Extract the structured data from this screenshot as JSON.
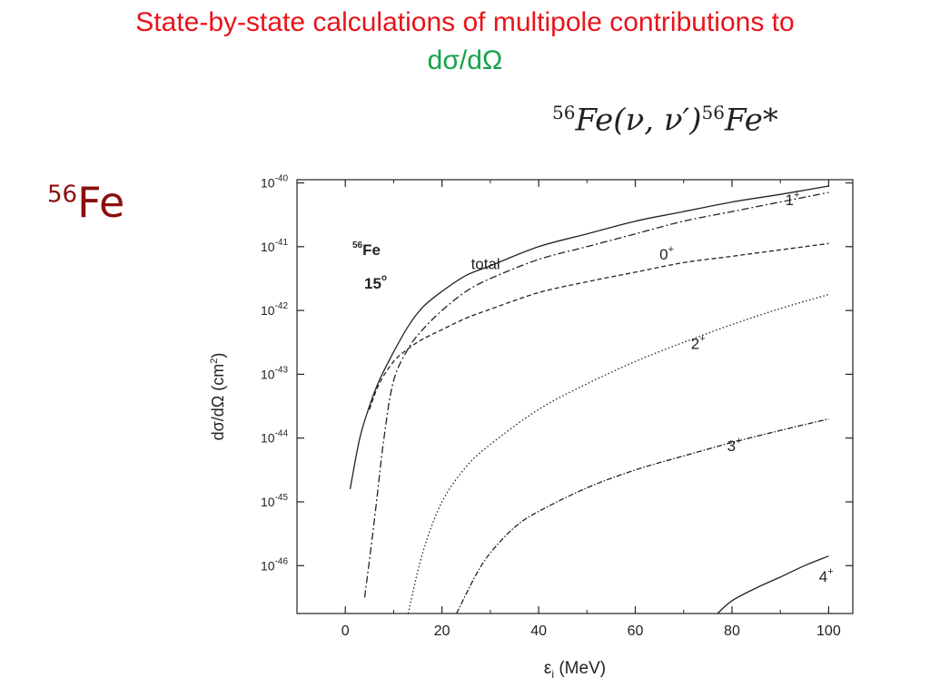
{
  "title": {
    "line1": "State-by-state calculations of multipole contributions to",
    "line2": "dσ/dΩ"
  },
  "reaction": {
    "mass_a": "56",
    "part1": "Fe(ν, ν′)",
    "mass_b": "56",
    "part2": "Fe*"
  },
  "side_label": {
    "mass": "56",
    "element": "Fe"
  },
  "colors": {
    "title_line1": "#e8131a",
    "title_line2": "#16a34a",
    "side_label": "#8b0f0f",
    "curves": "#222222"
  },
  "chart_data": {
    "type": "line",
    "xlabel": "εi (MeV)",
    "ylabel": "dσ/dΩ (cm²)",
    "xlim": [
      -10,
      105
    ],
    "ylim": [
      -46.75,
      -39.95
    ],
    "y_scale": "log10",
    "x_ticks": [
      0,
      20,
      40,
      60,
      80,
      100
    ],
    "y_ticks": [
      {
        "exp": -40,
        "label": "10-40"
      },
      {
        "exp": -41,
        "label": "10-41"
      },
      {
        "exp": -42,
        "label": "10-42"
      },
      {
        "exp": -43,
        "label": "10-43"
      },
      {
        "exp": -44,
        "label": "10-44"
      },
      {
        "exp": -45,
        "label": "10-45"
      },
      {
        "exp": -46,
        "label": "10-46"
      }
    ],
    "inset": {
      "nucleus_mass": "56",
      "nucleus": "Fe",
      "angle": "15",
      "angle_unit": "o"
    },
    "grid": false,
    "series": [
      {
        "name": "total",
        "dash": "",
        "x": [
          1,
          3,
          5,
          7,
          10,
          13,
          16,
          20,
          25,
          30,
          40,
          50,
          60,
          70,
          80,
          90,
          100
        ],
        "y": [
          -44.8,
          -44.0,
          -43.5,
          -43.1,
          -42.65,
          -42.25,
          -41.95,
          -41.7,
          -41.45,
          -41.3,
          -41.0,
          -40.8,
          -40.6,
          -40.45,
          -40.3,
          -40.18,
          -40.05
        ]
      },
      {
        "name": "1+",
        "dash": "8 3 2 3",
        "x": [
          4,
          6,
          8,
          10,
          13,
          16,
          20,
          25,
          30,
          40,
          50,
          60,
          70,
          80,
          90,
          100
        ],
        "y": [
          -46.5,
          -45.3,
          -44.0,
          -43.1,
          -42.6,
          -42.3,
          -42.0,
          -41.7,
          -41.5,
          -41.2,
          -41.0,
          -40.8,
          -40.6,
          -40.45,
          -40.3,
          -40.15
        ]
      },
      {
        "name": "0+",
        "dash": "5 3",
        "x": [
          5,
          7,
          10,
          13,
          16,
          20,
          25,
          30,
          40,
          50,
          60,
          70,
          80,
          90,
          100
        ],
        "y": [
          -43.55,
          -43.15,
          -42.8,
          -42.6,
          -42.45,
          -42.3,
          -42.12,
          -41.98,
          -41.72,
          -41.55,
          -41.4,
          -41.25,
          -41.15,
          -41.05,
          -40.95
        ]
      },
      {
        "name": "2+",
        "dash": "1.5 2.5",
        "x": [
          13,
          16,
          20,
          25,
          30,
          40,
          50,
          60,
          70,
          80,
          90,
          100
        ],
        "y": [
          -46.75,
          -45.8,
          -45.0,
          -44.45,
          -44.1,
          -43.55,
          -43.15,
          -42.8,
          -42.5,
          -42.22,
          -41.97,
          -41.75
        ]
      },
      {
        "name": "3+",
        "dash": "6 2 1.5 2",
        "x": [
          23,
          27,
          30,
          35,
          40,
          50,
          60,
          70,
          80,
          90,
          100
        ],
        "y": [
          -46.75,
          -46.15,
          -45.8,
          -45.4,
          -45.15,
          -44.78,
          -44.5,
          -44.28,
          -44.07,
          -43.88,
          -43.7
        ]
      },
      {
        "name": "4+",
        "dash": "",
        "x": [
          77,
          80,
          85,
          90,
          95,
          100
        ],
        "y": [
          -46.75,
          -46.55,
          -46.35,
          -46.18,
          -46.0,
          -45.85
        ]
      }
    ],
    "curve_labels": [
      {
        "text": "total",
        "sup": "",
        "x": 26,
        "y": -41.35
      },
      {
        "text": "1",
        "sup": "+",
        "x": 91,
        "y": -40.35
      },
      {
        "text": "0",
        "sup": "+",
        "x": 65,
        "y": -41.2
      },
      {
        "text": "2",
        "sup": "+",
        "x": 71.5,
        "y": -42.6
      },
      {
        "text": "3",
        "sup": "+",
        "x": 79,
        "y": -44.2
      },
      {
        "text": "4",
        "sup": "+",
        "x": 98,
        "y": -46.25
      }
    ]
  }
}
